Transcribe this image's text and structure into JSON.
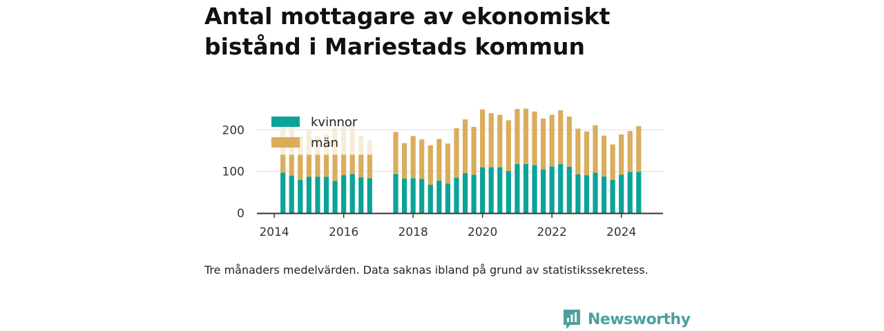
{
  "title": "Antal mottagare av ekonomiskt bistånd i Mariestads kommun",
  "caption": "Tre månaders medelvärden. Data saknas ibland på grund av statistikssekretess.",
  "brand": {
    "name": "Newsworthy",
    "color": "#4aa1a0"
  },
  "colors": {
    "kvinnor": "#0ba398",
    "man": "#d9ad5c",
    "man_faded": "#f7ecda",
    "axis": "#333333",
    "grid": "#dddddd"
  },
  "chart_data": {
    "type": "bar",
    "stacked": true,
    "x_ticks": [
      "2014",
      "2016",
      "2018",
      "2020",
      "2022",
      "2024"
    ],
    "y_ticks": [
      "0",
      "100",
      "200"
    ],
    "ylim": [
      0,
      280
    ],
    "xlim": [
      2013.5,
      2025.2
    ],
    "grid": true,
    "legend_position": "top-left",
    "x": [
      2014.25,
      2014.5,
      2014.75,
      2015.0,
      2015.25,
      2015.5,
      2015.75,
      2016.0,
      2016.25,
      2016.5,
      2016.75,
      2017.5,
      2017.75,
      2018.0,
      2018.25,
      2018.5,
      2018.75,
      2019.0,
      2019.25,
      2019.5,
      2019.75,
      2020.0,
      2020.25,
      2020.5,
      2020.75,
      2021.0,
      2021.25,
      2021.5,
      2021.75,
      2022.0,
      2022.25,
      2022.5,
      2022.75,
      2023.0,
      2023.25,
      2023.5,
      2023.75,
      2024.0,
      2024.25,
      2024.5
    ],
    "series": [
      {
        "name": "kvinnor",
        "values": [
          97,
          90,
          80,
          87,
          87,
          87,
          77,
          91,
          94,
          86,
          84,
          94,
          83,
          84,
          82,
          68,
          78,
          71,
          85,
          96,
          92,
          110,
          110,
          110,
          101,
          118,
          118,
          115,
          105,
          112,
          118,
          111,
          93,
          91,
          97,
          88,
          80,
          92,
          99,
          99
        ]
      },
      {
        "name": "män",
        "values": [
          124,
          117,
          104,
          115,
          98,
          103,
          128,
          118,
          122,
          100,
          91,
          101,
          85,
          101,
          95,
          95,
          100,
          96,
          119,
          129,
          115,
          139,
          130,
          126,
          122,
          132,
          133,
          129,
          122,
          124,
          129,
          121,
          110,
          105,
          114,
          98,
          85,
          97,
          98,
          110
        ]
      }
    ],
    "faded_bar_count": 11,
    "faded_cap": 140
  }
}
